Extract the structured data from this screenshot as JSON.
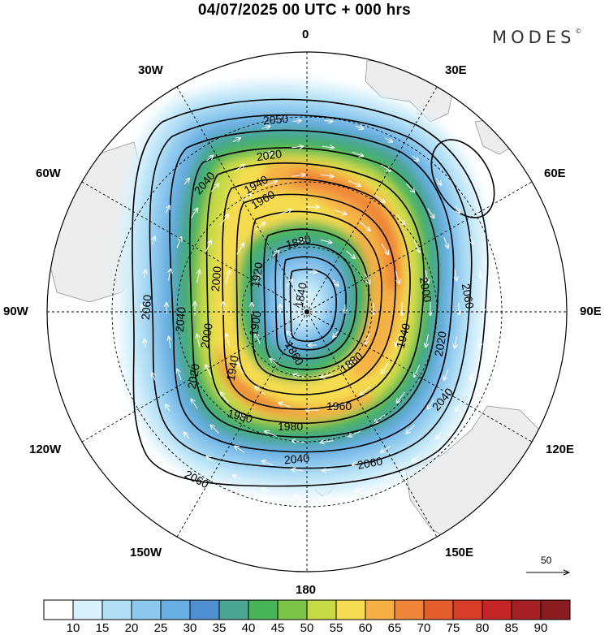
{
  "header": {
    "title": "04/07/2025  00 UTC  + 000 hrs",
    "brand": "MODES"
  },
  "longitude_labels": {
    "n0": "0",
    "e30": "30E",
    "e60": "60E",
    "e90": "90E",
    "e120": "120E",
    "e150": "150E",
    "s180": "180",
    "w150": "150W",
    "w120": "120W",
    "w90": "90W",
    "w60": "60W",
    "w30": "30W"
  },
  "contour_labels": {
    "c1840": "1840",
    "c1860": "1860",
    "c1880a": "1880",
    "c1880b": "1880",
    "c1900": "1900",
    "c1920": "1920",
    "c1940a": "1940",
    "c1940b": "1940",
    "c1940c": "1940",
    "c1960a": "1960",
    "c1960b": "1960",
    "c1980a": "1980",
    "c1980b": "1980",
    "c2000a": "2000",
    "c2000b": "2000",
    "c2000c": "2000",
    "c2020a": "2020",
    "c2020b": "2020",
    "c2020c": "2020",
    "c2040a": "2040",
    "c2040b": "2040",
    "c2040c": "2040",
    "c2040d": "2040",
    "c2050": "2050",
    "c2060a": "2060",
    "c2060b": "2060",
    "c2060c": "2060",
    "c2060d": "2060"
  },
  "reference_vector": {
    "label": "50"
  },
  "colorbar": {
    "tick_labels": [
      "10",
      "15",
      "20",
      "25",
      "30",
      "35",
      "40",
      "45",
      "50",
      "55",
      "60",
      "65",
      "70",
      "75",
      "80",
      "85",
      "90"
    ],
    "colors": [
      "#ffffff",
      "#d8f1fb",
      "#b3e0f6",
      "#8dc8ee",
      "#68aee2",
      "#4f8fcf",
      "#4aa593",
      "#48b559",
      "#7cc349",
      "#c6da46",
      "#f5dc50",
      "#f5b145",
      "#ee8537",
      "#e45d2c",
      "#d93c27",
      "#c42426",
      "#a51e24",
      "#8a1b1e"
    ]
  }
}
